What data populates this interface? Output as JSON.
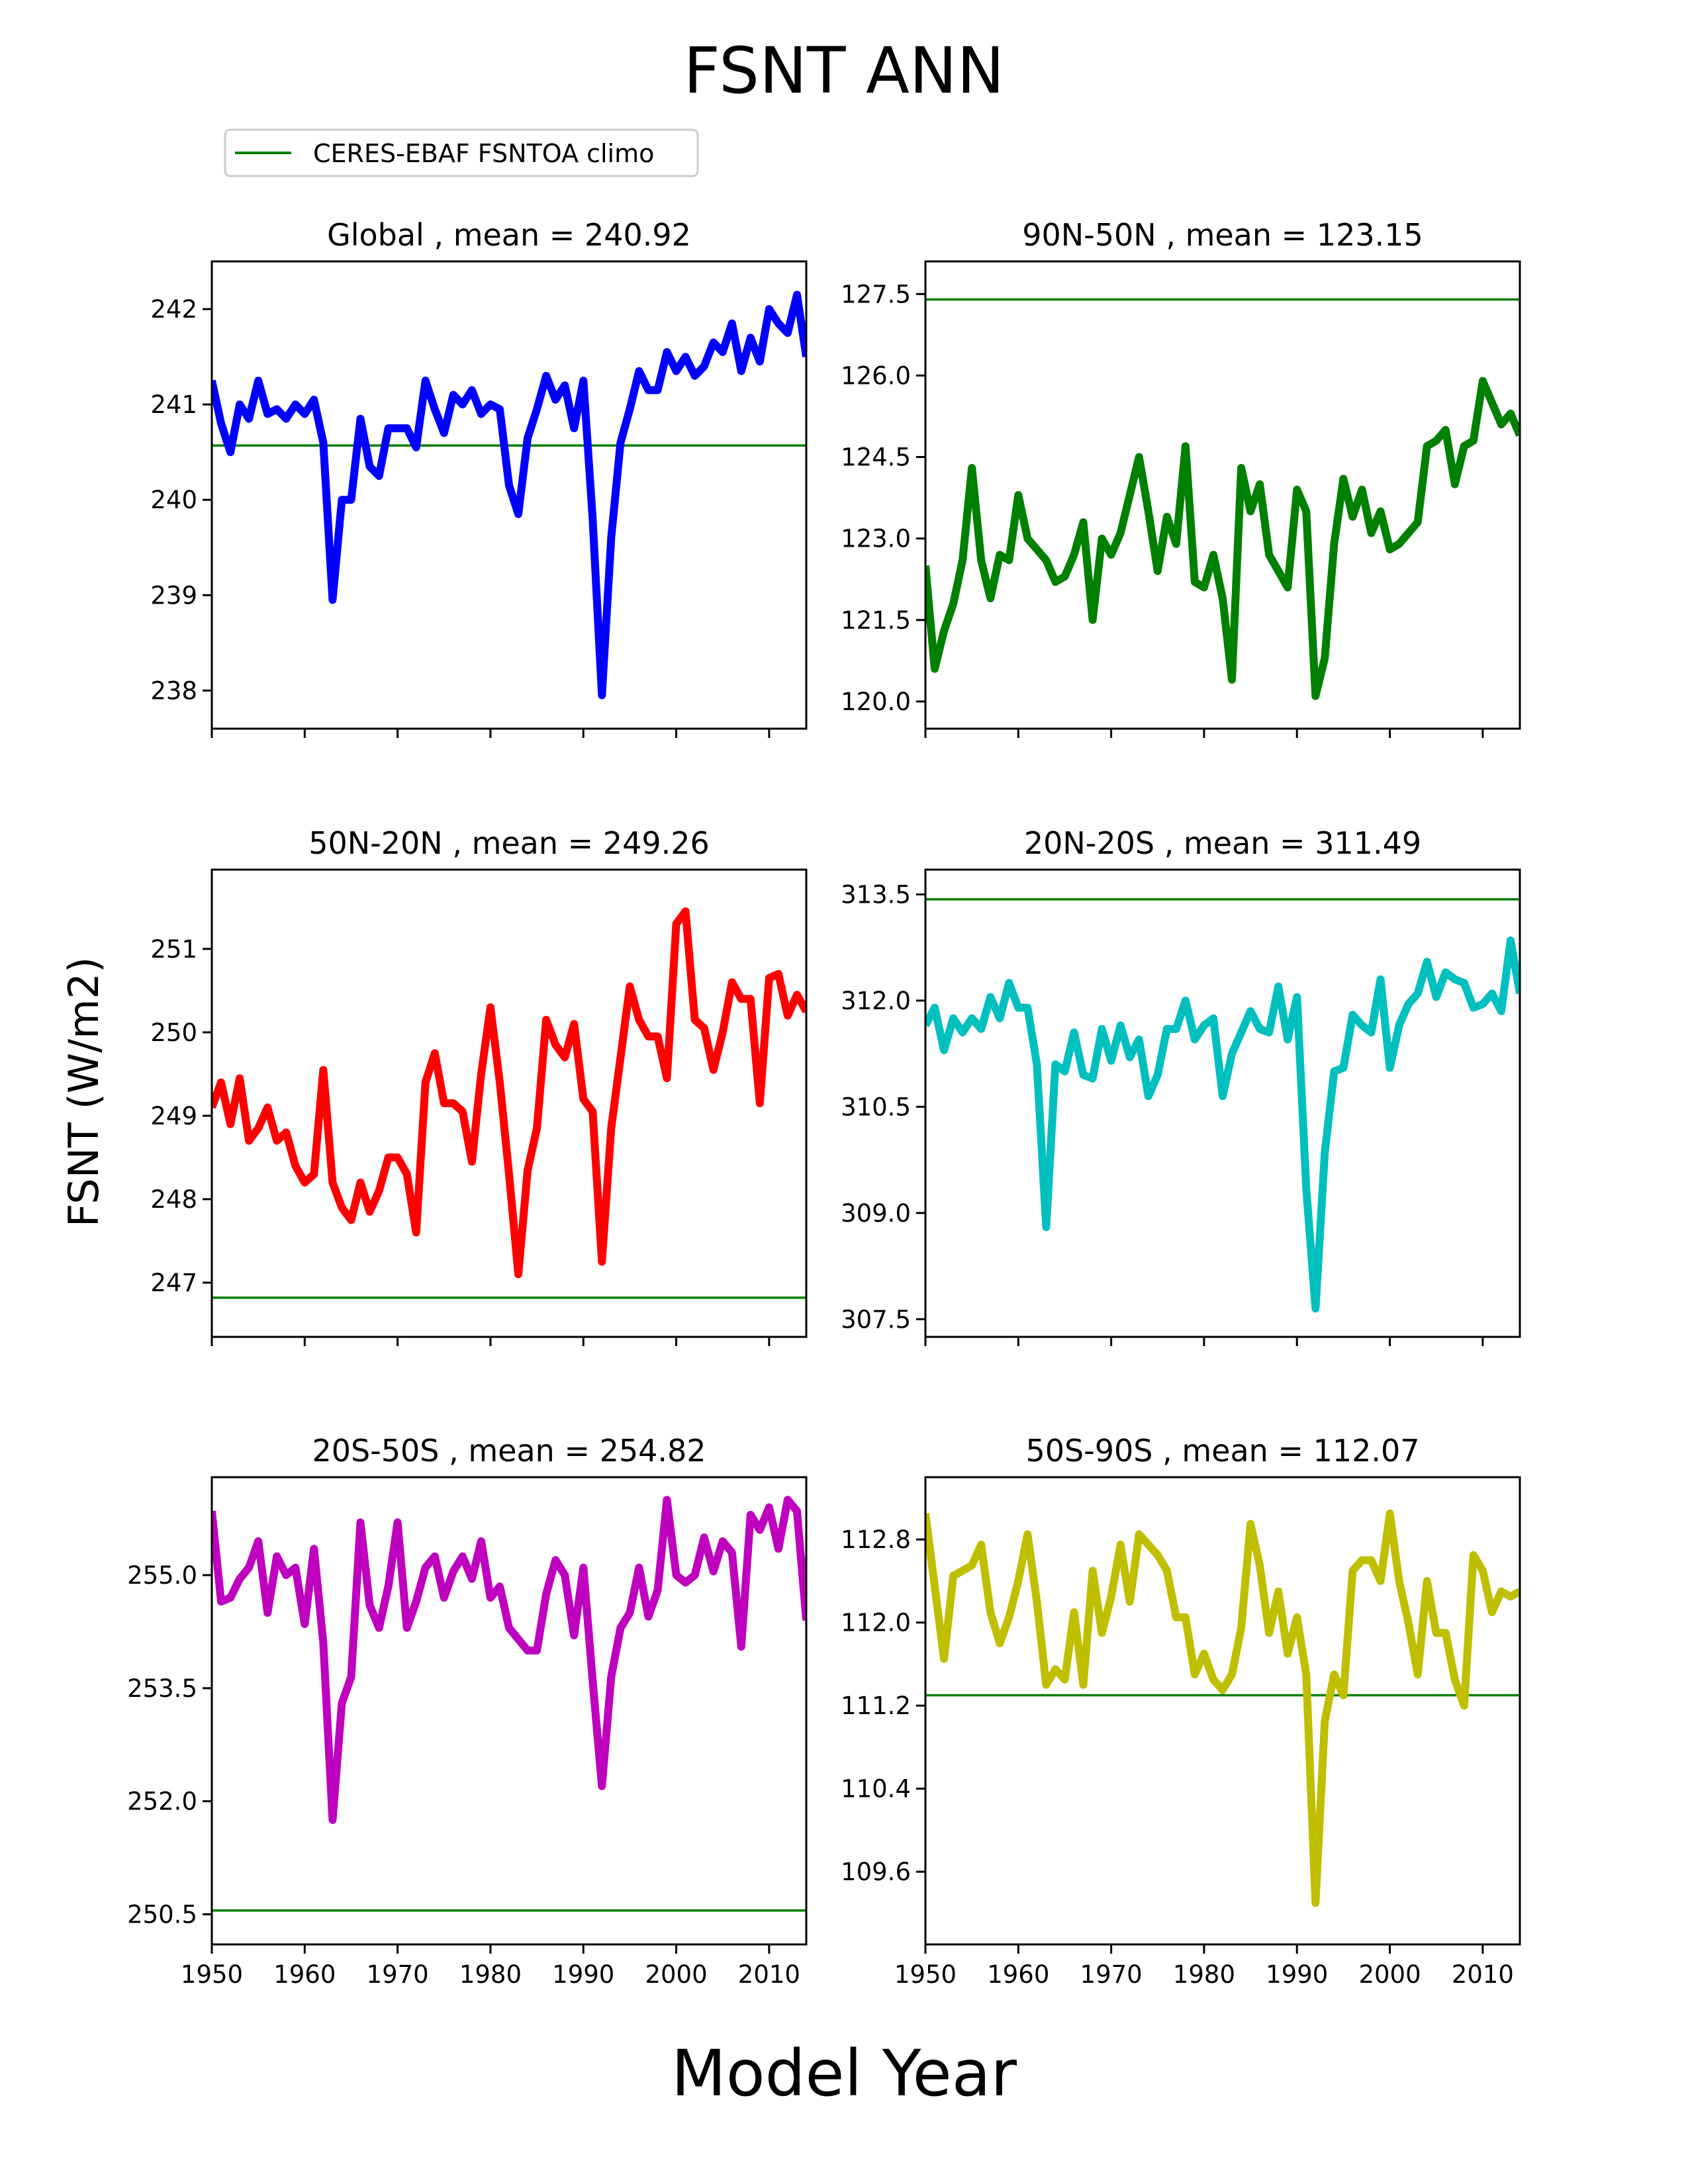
{
  "figure": {
    "title": "FSNT ANN",
    "xlabel": "Model Year",
    "ylabel": "FSNT (W/m2)"
  },
  "legend": {
    "label": "CERES-EBAF FSNTOA climo",
    "color": "#008000",
    "placement": "top-left"
  },
  "chart_data": [
    {
      "type": "line",
      "title": "Global , mean = 240.92",
      "color": "#0000ff",
      "xlim": [
        1950,
        2014
      ],
      "ylim": [
        237.6,
        242.5
      ],
      "xticks": [
        1950,
        1960,
        1970,
        1980,
        1990,
        2000,
        2010
      ],
      "yticks": [
        238,
        239,
        240,
        241,
        242
      ],
      "ytick_labels": [
        "238",
        "239",
        "240",
        "241",
        "242"
      ],
      "show_xtick_labels": false,
      "reference": 240.57,
      "x": [
        1950,
        1951,
        1952,
        1953,
        1954,
        1955,
        1956,
        1957,
        1958,
        1959,
        1960,
        1961,
        1962,
        1963,
        1964,
        1965,
        1966,
        1967,
        1968,
        1969,
        1970,
        1971,
        1972,
        1973,
        1974,
        1975,
        1976,
        1977,
        1978,
        1979,
        1980,
        1981,
        1982,
        1983,
        1984,
        1985,
        1986,
        1987,
        1988,
        1989,
        1990,
        1991,
        1992,
        1993,
        1994,
        1995,
        1996,
        1997,
        1998,
        1999,
        2000,
        2001,
        2002,
        2003,
        2004,
        2005,
        2006,
        2007,
        2008,
        2009,
        2010,
        2011,
        2012,
        2013,
        2014
      ],
      "values": [
        241.25,
        240.8,
        240.5,
        241.0,
        240.85,
        241.25,
        240.9,
        240.95,
        240.85,
        241.0,
        240.9,
        241.05,
        240.6,
        238.95,
        240.0,
        240.0,
        240.85,
        240.35,
        240.25,
        240.75,
        240.75,
        240.75,
        240.55,
        241.25,
        240.95,
        240.7,
        241.1,
        241.0,
        241.15,
        240.9,
        241.0,
        240.95,
        240.15,
        239.85,
        240.65,
        240.95,
        241.3,
        241.05,
        241.2,
        240.75,
        241.25,
        239.8,
        237.95,
        239.6,
        240.6,
        240.95,
        241.35,
        241.15,
        241.15,
        241.55,
        241.35,
        241.5,
        241.3,
        241.4,
        241.65,
        241.55,
        241.85,
        241.35,
        241.7,
        241.45,
        242.0,
        241.85,
        241.75,
        242.15,
        241.5
      ]
    },
    {
      "type": "line",
      "title": "90N-50N , mean = 123.15",
      "color": "#008000",
      "xlim": [
        1950,
        2014
      ],
      "ylim": [
        119.5,
        128.1
      ],
      "xticks": [
        1950,
        1960,
        1970,
        1980,
        1990,
        2000,
        2010
      ],
      "yticks": [
        120.0,
        121.5,
        123.0,
        124.5,
        126.0,
        127.5
      ],
      "ytick_labels": [
        "120.0",
        "121.5",
        "123.0",
        "124.5",
        "126.0",
        "127.5"
      ],
      "show_xtick_labels": false,
      "reference": 127.4,
      "x": [
        1950,
        1951,
        1952,
        1953,
        1954,
        1955,
        1956,
        1957,
        1958,
        1959,
        1960,
        1961,
        1962,
        1963,
        1964,
        1965,
        1966,
        1967,
        1968,
        1969,
        1970,
        1971,
        1972,
        1973,
        1974,
        1975,
        1976,
        1977,
        1978,
        1979,
        1980,
        1981,
        1982,
        1983,
        1984,
        1985,
        1986,
        1987,
        1988,
        1989,
        1990,
        1991,
        1992,
        1993,
        1994,
        1995,
        1996,
        1997,
        1998,
        1999,
        2000,
        2001,
        2002,
        2003,
        2004,
        2005,
        2006,
        2007,
        2008,
        2009,
        2010,
        2011,
        2012,
        2013,
        2014
      ],
      "values": [
        122.5,
        120.6,
        121.3,
        121.8,
        122.6,
        124.3,
        122.6,
        121.9,
        122.7,
        122.6,
        123.8,
        123.0,
        122.8,
        122.6,
        122.2,
        122.3,
        122.7,
        123.3,
        121.5,
        123.0,
        122.7,
        123.1,
        123.8,
        124.5,
        123.5,
        122.4,
        123.4,
        122.9,
        124.7,
        122.2,
        122.1,
        122.7,
        121.9,
        120.4,
        124.3,
        123.5,
        124.0,
        122.7,
        122.4,
        122.1,
        123.9,
        123.5,
        120.1,
        120.8,
        122.9,
        124.1,
        123.4,
        123.9,
        123.1,
        123.5,
        122.8,
        122.9,
        123.1,
        123.3,
        124.7,
        124.8,
        125.0,
        124.0,
        124.7,
        124.8,
        125.9,
        125.5,
        125.1,
        125.3,
        124.9
      ]
    },
    {
      "type": "line",
      "title": "50N-20N , mean = 249.26",
      "color": "#ff0000",
      "xlim": [
        1950,
        2014
      ],
      "ylim": [
        246.35,
        251.95
      ],
      "xticks": [
        1950,
        1960,
        1970,
        1980,
        1990,
        2000,
        2010
      ],
      "yticks": [
        247,
        248,
        249,
        250,
        251
      ],
      "ytick_labels": [
        "247",
        "248",
        "249",
        "250",
        "251"
      ],
      "show_xtick_labels": false,
      "reference": 246.82,
      "x": [
        1950,
        1951,
        1952,
        1953,
        1954,
        1955,
        1956,
        1957,
        1958,
        1959,
        1960,
        1961,
        1962,
        1963,
        1964,
        1965,
        1966,
        1967,
        1968,
        1969,
        1970,
        1971,
        1972,
        1973,
        1974,
        1975,
        1976,
        1977,
        1978,
        1979,
        1980,
        1981,
        1982,
        1983,
        1984,
        1985,
        1986,
        1987,
        1988,
        1989,
        1990,
        1991,
        1992,
        1993,
        1994,
        1995,
        1996,
        1997,
        1998,
        1999,
        2000,
        2001,
        2002,
        2003,
        2004,
        2005,
        2006,
        2007,
        2008,
        2009,
        2010,
        2011,
        2012,
        2013,
        2014
      ],
      "values": [
        249.1,
        249.4,
        248.9,
        249.45,
        248.7,
        248.85,
        249.1,
        248.7,
        248.8,
        248.4,
        248.2,
        248.3,
        249.55,
        248.2,
        247.9,
        247.75,
        248.2,
        247.85,
        248.1,
        248.5,
        248.5,
        248.3,
        247.6,
        249.4,
        249.75,
        249.15,
        249.15,
        249.05,
        248.45,
        249.5,
        250.3,
        249.4,
        248.3,
        247.1,
        248.35,
        248.85,
        250.15,
        249.85,
        249.7,
        250.1,
        249.2,
        249.05,
        247.25,
        248.85,
        249.7,
        250.55,
        250.15,
        249.95,
        249.95,
        249.45,
        251.3,
        251.45,
        250.15,
        250.05,
        249.55,
        250.0,
        250.6,
        250.4,
        250.4,
        249.15,
        250.65,
        250.7,
        250.2,
        250.45,
        250.25
      ]
    },
    {
      "type": "line",
      "title": "20N-20S , mean = 311.49",
      "color": "#00bfbf",
      "xlim": [
        1950,
        2014
      ],
      "ylim": [
        307.25,
        313.85
      ],
      "xticks": [
        1950,
        1960,
        1970,
        1980,
        1990,
        2000,
        2010
      ],
      "yticks": [
        307.5,
        309.0,
        310.5,
        312.0,
        313.5
      ],
      "ytick_labels": [
        "307.5",
        "309.0",
        "310.5",
        "312.0",
        "313.5"
      ],
      "show_xtick_labels": false,
      "reference": 313.43,
      "x": [
        1950,
        1951,
        1952,
        1953,
        1954,
        1955,
        1956,
        1957,
        1958,
        1959,
        1960,
        1961,
        1962,
        1963,
        1964,
        1965,
        1966,
        1967,
        1968,
        1969,
        1970,
        1971,
        1972,
        1973,
        1974,
        1975,
        1976,
        1977,
        1978,
        1979,
        1980,
        1981,
        1982,
        1983,
        1984,
        1985,
        1986,
        1987,
        1988,
        1989,
        1990,
        1991,
        1992,
        1993,
        1994,
        1995,
        1996,
        1997,
        1998,
        1999,
        2000,
        2001,
        2002,
        2003,
        2004,
        2005,
        2006,
        2007,
        2008,
        2009,
        2010,
        2011,
        2012,
        2013,
        2014
      ],
      "values": [
        311.65,
        311.9,
        311.3,
        311.75,
        311.55,
        311.75,
        311.6,
        312.05,
        311.75,
        312.25,
        311.9,
        311.9,
        311.1,
        308.8,
        311.1,
        311.0,
        311.55,
        310.95,
        310.9,
        311.6,
        311.15,
        311.65,
        311.2,
        311.45,
        310.65,
        310.95,
        311.6,
        311.6,
        312.0,
        311.45,
        311.65,
        311.75,
        310.65,
        311.25,
        311.55,
        311.85,
        311.6,
        311.55,
        312.2,
        311.45,
        312.05,
        309.35,
        307.65,
        309.85,
        311.0,
        311.05,
        311.8,
        311.65,
        311.55,
        312.3,
        311.05,
        311.65,
        311.95,
        312.1,
        312.55,
        312.05,
        312.4,
        312.3,
        312.25,
        311.9,
        311.95,
        312.1,
        311.85,
        312.85,
        312.1
      ]
    },
    {
      "type": "line",
      "title": "20S-50S , mean = 254.82",
      "color": "#bf00bf",
      "xlim": [
        1950,
        2014
      ],
      "ylim": [
        250.1,
        256.3
      ],
      "xticks": [
        1950,
        1960,
        1970,
        1980,
        1990,
        2000,
        2010
      ],
      "yticks": [
        250.5,
        252.0,
        253.5,
        255.0
      ],
      "ytick_labels": [
        "250.5",
        "252.0",
        "253.5",
        "255.0"
      ],
      "show_xtick_labels": true,
      "reference": 250.55,
      "x": [
        1950,
        1951,
        1952,
        1953,
        1954,
        1955,
        1956,
        1957,
        1958,
        1959,
        1960,
        1961,
        1962,
        1963,
        1964,
        1965,
        1966,
        1967,
        1968,
        1969,
        1970,
        1971,
        1972,
        1973,
        1974,
        1975,
        1976,
        1977,
        1978,
        1979,
        1980,
        1981,
        1982,
        1983,
        1984,
        1985,
        1986,
        1987,
        1988,
        1989,
        1990,
        1991,
        1992,
        1993,
        1994,
        1995,
        1996,
        1997,
        1998,
        1999,
        2000,
        2001,
        2002,
        2003,
        2004,
        2005,
        2006,
        2007,
        2008,
        2009,
        2010,
        2011,
        2012,
        2013,
        2014
      ],
      "values": [
        255.85,
        254.65,
        254.7,
        254.95,
        255.1,
        255.45,
        254.5,
        255.25,
        255.0,
        255.1,
        254.35,
        255.35,
        254.1,
        251.75,
        253.3,
        253.65,
        255.7,
        254.6,
        254.3,
        254.85,
        255.7,
        254.3,
        254.65,
        255.1,
        255.25,
        254.7,
        255.05,
        255.25,
        254.95,
        255.45,
        254.7,
        254.85,
        254.3,
        254.15,
        254.0,
        254.0,
        254.75,
        255.2,
        255.0,
        254.2,
        255.1,
        253.6,
        252.2,
        253.65,
        254.3,
        254.5,
        255.1,
        254.45,
        254.8,
        256.0,
        255.0,
        254.9,
        255.0,
        255.5,
        255.05,
        255.45,
        255.3,
        254.05,
        255.8,
        255.6,
        255.9,
        255.35,
        256.0,
        255.85,
        254.4
      ]
    },
    {
      "type": "line",
      "title": "50S-90S , mean = 112.07",
      "color": "#bfbf00",
      "xlim": [
        1950,
        2014
      ],
      "ylim": [
        108.9,
        113.4
      ],
      "xticks": [
        1950,
        1960,
        1970,
        1980,
        1990,
        2000,
        2010
      ],
      "yticks": [
        109.6,
        110.4,
        111.2,
        112.0,
        112.8
      ],
      "ytick_labels": [
        "109.6",
        "110.4",
        "111.2",
        "112.0",
        "112.8"
      ],
      "show_xtick_labels": true,
      "reference": 111.3,
      "x": [
        1950,
        1951,
        1952,
        1953,
        1954,
        1955,
        1956,
        1957,
        1958,
        1959,
        1960,
        1961,
        1962,
        1963,
        1964,
        1965,
        1966,
        1967,
        1968,
        1969,
        1970,
        1971,
        1972,
        1973,
        1974,
        1975,
        1976,
        1977,
        1978,
        1979,
        1980,
        1981,
        1982,
        1983,
        1984,
        1985,
        1986,
        1987,
        1988,
        1989,
        1990,
        1991,
        1992,
        1993,
        1994,
        1995,
        1996,
        1997,
        1998,
        1999,
        2000,
        2001,
        2002,
        2003,
        2004,
        2005,
        2006,
        2007,
        2008,
        2009,
        2010,
        2011,
        2012,
        2013,
        2014
      ],
      "values": [
        113.05,
        112.35,
        111.65,
        112.45,
        112.5,
        112.55,
        112.75,
        112.1,
        111.8,
        112.05,
        112.4,
        112.85,
        112.2,
        111.4,
        111.55,
        111.45,
        112.1,
        111.4,
        112.5,
        111.9,
        112.25,
        112.75,
        112.2,
        112.85,
        112.75,
        112.65,
        112.5,
        112.05,
        112.05,
        111.5,
        111.7,
        111.45,
        111.35,
        111.5,
        111.95,
        112.95,
        112.55,
        111.9,
        112.3,
        111.7,
        112.05,
        111.5,
        109.3,
        111.05,
        111.5,
        111.3,
        112.5,
        112.6,
        112.6,
        112.4,
        113.05,
        112.4,
        112.0,
        111.5,
        112.4,
        111.9,
        111.9,
        111.45,
        111.2,
        112.65,
        112.5,
        112.1,
        112.3,
        112.25,
        112.3
      ]
    }
  ]
}
